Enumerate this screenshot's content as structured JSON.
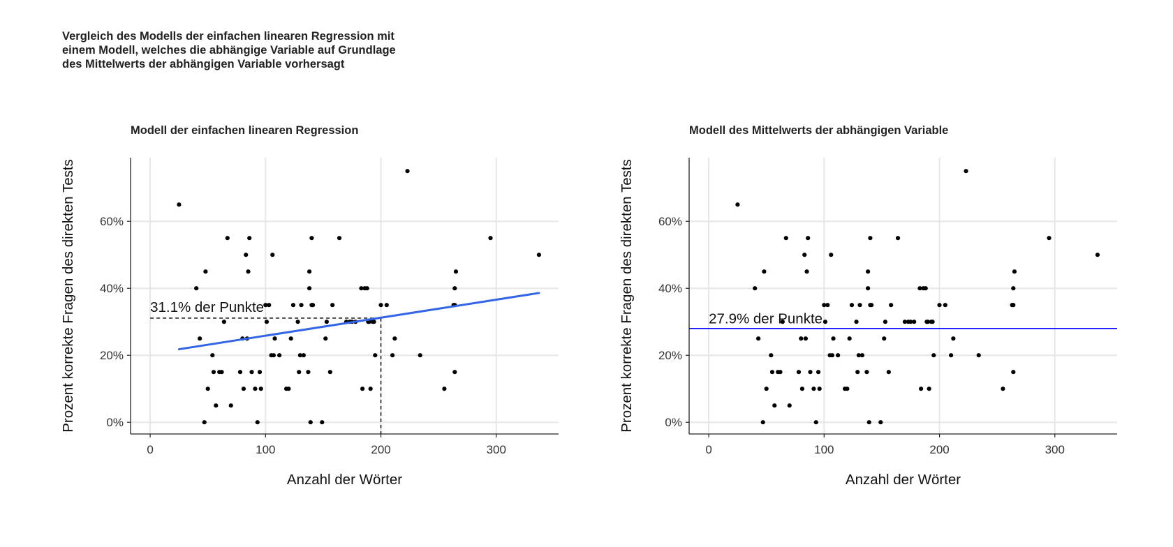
{
  "title_lines": [
    "Vergleich des Modells der einfachen linearen Regression mit",
    "einem Modell, welches die abhängige Variable auf Grundlage",
    "des Mittelwerts der abhängigen Variable vorhersagt"
  ],
  "chart_data": [
    {
      "type": "scatter",
      "title": "Modell der einfachen linearen Regression",
      "xlabel": "Anzahl der Wörter",
      "ylabel": "Prozent korrekte Fragen des direkten Tests",
      "xlim": [
        -17,
        354
      ],
      "ylim": [
        -3.5,
        79
      ],
      "xticks": [
        0,
        100,
        200,
        300
      ],
      "xtick_labels": [
        "0",
        "100",
        "200",
        "300"
      ],
      "yticks": [
        0,
        20,
        40,
        60
      ],
      "ytick_labels": [
        "0%",
        "20%",
        "40%",
        "60%"
      ],
      "grid": true,
      "point_color": "#000000",
      "annotation": {
        "text": "31.1% der Punkte",
        "x": 0,
        "y": 33
      },
      "fit_line": {
        "x": [
          25,
          337
        ],
        "y": [
          21.8,
          38.6
        ],
        "color": "#3366e6"
      },
      "guide_lines": {
        "x": 200,
        "y": 31.1,
        "style": "dashed"
      },
      "points": [
        [
          25,
          65
        ],
        [
          40,
          40
        ],
        [
          43,
          25
        ],
        [
          47,
          0
        ],
        [
          48,
          45
        ],
        [
          50,
          10
        ],
        [
          54,
          20
        ],
        [
          55,
          15
        ],
        [
          57,
          5
        ],
        [
          60,
          15
        ],
        [
          62,
          15
        ],
        [
          64,
          30
        ],
        [
          67,
          55
        ],
        [
          70,
          5
        ],
        [
          78,
          15
        ],
        [
          80,
          25
        ],
        [
          81,
          10
        ],
        [
          83,
          50
        ],
        [
          84,
          25
        ],
        [
          85,
          45
        ],
        [
          86,
          55
        ],
        [
          88,
          15
        ],
        [
          91,
          10
        ],
        [
          93,
          0
        ],
        [
          95,
          15
        ],
        [
          96,
          10
        ],
        [
          100,
          35
        ],
        [
          101,
          30
        ],
        [
          103,
          35
        ],
        [
          105,
          20
        ],
        [
          106,
          50
        ],
        [
          107,
          20
        ],
        [
          108,
          25
        ],
        [
          112,
          20
        ],
        [
          118,
          10
        ],
        [
          120,
          10
        ],
        [
          122,
          25
        ],
        [
          124,
          35
        ],
        [
          128,
          30
        ],
        [
          129,
          15
        ],
        [
          130,
          20
        ],
        [
          131,
          35
        ],
        [
          133,
          20
        ],
        [
          137,
          15
        ],
        [
          138,
          40
        ],
        [
          138,
          45
        ],
        [
          139,
          0
        ],
        [
          140,
          35
        ],
        [
          140,
          55
        ],
        [
          141,
          35
        ],
        [
          149,
          0
        ],
        [
          152,
          25
        ],
        [
          153,
          30
        ],
        [
          156,
          15
        ],
        [
          158,
          35
        ],
        [
          164,
          55
        ],
        [
          170,
          30
        ],
        [
          173,
          30
        ],
        [
          175,
          30
        ],
        [
          178,
          30
        ],
        [
          183,
          40
        ],
        [
          184,
          10
        ],
        [
          186,
          40
        ],
        [
          188,
          40
        ],
        [
          189,
          30
        ],
        [
          190,
          30
        ],
        [
          191,
          10
        ],
        [
          193,
          30
        ],
        [
          194,
          30
        ],
        [
          195,
          20
        ],
        [
          200,
          35
        ],
        [
          205,
          35
        ],
        [
          210,
          20
        ],
        [
          212,
          25
        ],
        [
          223,
          75
        ],
        [
          234,
          20
        ],
        [
          255,
          10
        ],
        [
          263,
          35
        ],
        [
          264,
          35
        ],
        [
          264,
          40
        ],
        [
          264,
          15
        ],
        [
          265,
          45
        ],
        [
          295,
          55
        ],
        [
          337,
          50
        ]
      ]
    },
    {
      "type": "scatter",
      "title": "Modell des Mittelwerts der abhängigen Variable",
      "xlabel": "Anzahl der Wörter",
      "ylabel": "Prozent korrekte Fragen des direkten Tests",
      "xlim": [
        -17,
        354
      ],
      "ylim": [
        -3.5,
        79
      ],
      "xticks": [
        0,
        100,
        200,
        300
      ],
      "xtick_labels": [
        "0",
        "100",
        "200",
        "300"
      ],
      "yticks": [
        0,
        20,
        40,
        60
      ],
      "ytick_labels": [
        "0%",
        "20%",
        "40%",
        "60%"
      ],
      "grid": true,
      "point_color": "#000000",
      "annotation": {
        "text": "27.9% der Punkte",
        "x": 0,
        "y": 29.5
      },
      "mean_line": {
        "y": 28,
        "color": "#0000ff"
      },
      "points": [
        [
          25,
          65
        ],
        [
          40,
          40
        ],
        [
          43,
          25
        ],
        [
          47,
          0
        ],
        [
          48,
          45
        ],
        [
          50,
          10
        ],
        [
          54,
          20
        ],
        [
          55,
          15
        ],
        [
          57,
          5
        ],
        [
          60,
          15
        ],
        [
          62,
          15
        ],
        [
          64,
          30
        ],
        [
          67,
          55
        ],
        [
          70,
          5
        ],
        [
          78,
          15
        ],
        [
          80,
          25
        ],
        [
          81,
          10
        ],
        [
          83,
          50
        ],
        [
          84,
          25
        ],
        [
          85,
          45
        ],
        [
          86,
          55
        ],
        [
          88,
          15
        ],
        [
          91,
          10
        ],
        [
          93,
          0
        ],
        [
          95,
          15
        ],
        [
          96,
          10
        ],
        [
          100,
          35
        ],
        [
          101,
          30
        ],
        [
          103,
          35
        ],
        [
          105,
          20
        ],
        [
          106,
          50
        ],
        [
          107,
          20
        ],
        [
          108,
          25
        ],
        [
          112,
          20
        ],
        [
          118,
          10
        ],
        [
          120,
          10
        ],
        [
          122,
          25
        ],
        [
          124,
          35
        ],
        [
          128,
          30
        ],
        [
          129,
          15
        ],
        [
          130,
          20
        ],
        [
          131,
          35
        ],
        [
          133,
          20
        ],
        [
          137,
          15
        ],
        [
          138,
          40
        ],
        [
          138,
          45
        ],
        [
          139,
          0
        ],
        [
          140,
          35
        ],
        [
          140,
          55
        ],
        [
          141,
          35
        ],
        [
          149,
          0
        ],
        [
          152,
          25
        ],
        [
          153,
          30
        ],
        [
          156,
          15
        ],
        [
          158,
          35
        ],
        [
          164,
          55
        ],
        [
          170,
          30
        ],
        [
          173,
          30
        ],
        [
          175,
          30
        ],
        [
          178,
          30
        ],
        [
          183,
          40
        ],
        [
          184,
          10
        ],
        [
          186,
          40
        ],
        [
          188,
          40
        ],
        [
          189,
          30
        ],
        [
          190,
          30
        ],
        [
          191,
          10
        ],
        [
          193,
          30
        ],
        [
          194,
          30
        ],
        [
          195,
          20
        ],
        [
          200,
          35
        ],
        [
          205,
          35
        ],
        [
          210,
          20
        ],
        [
          212,
          25
        ],
        [
          223,
          75
        ],
        [
          234,
          20
        ],
        [
          255,
          10
        ],
        [
          263,
          35
        ],
        [
          264,
          35
        ],
        [
          264,
          40
        ],
        [
          264,
          15
        ],
        [
          265,
          45
        ],
        [
          295,
          55
        ],
        [
          337,
          50
        ]
      ]
    }
  ]
}
